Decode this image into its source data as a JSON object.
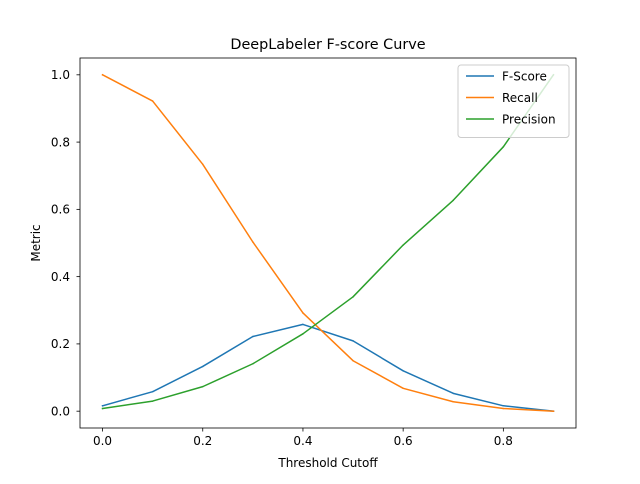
{
  "chart_data": {
    "type": "line",
    "title": "DeepLabeler F-score Curve",
    "xlabel": "Threshold Cutoff",
    "ylabel": "Metric",
    "xlim": [
      -0.045,
      0.945
    ],
    "ylim": [
      -0.05,
      1.05
    ],
    "x": [
      0.0,
      0.1,
      0.2,
      0.3,
      0.4,
      0.5,
      0.6,
      0.7,
      0.8,
      0.9
    ],
    "xticks": [
      0.0,
      0.2,
      0.4,
      0.6,
      0.8
    ],
    "xtick_labels": [
      "0.0",
      "0.2",
      "0.4",
      "0.6",
      "0.8"
    ],
    "yticks": [
      0.0,
      0.2,
      0.4,
      0.6,
      0.8,
      1.0
    ],
    "ytick_labels": [
      "0.0",
      "0.2",
      "0.4",
      "0.6",
      "0.8",
      "1.0"
    ],
    "grid": false,
    "legend_position": "top-right",
    "series": [
      {
        "name": "F-Score",
        "color": "#1f77b4",
        "values": [
          0.016,
          0.058,
          0.133,
          0.222,
          0.258,
          0.209,
          0.12,
          0.053,
          0.016,
          0.0
        ]
      },
      {
        "name": "Recall",
        "color": "#ff7f0e",
        "values": [
          1.0,
          0.922,
          0.734,
          0.503,
          0.292,
          0.15,
          0.068,
          0.028,
          0.008,
          0.0
        ]
      },
      {
        "name": "Precision",
        "color": "#2ca02c",
        "values": [
          0.008,
          0.03,
          0.073,
          0.141,
          0.23,
          0.34,
          0.494,
          0.627,
          0.786,
          1.0
        ]
      }
    ]
  }
}
